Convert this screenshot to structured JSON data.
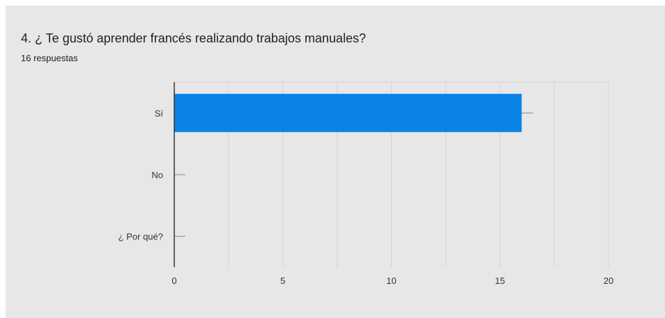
{
  "question": {
    "title": "4. ¿ Te gustó aprender francés realizando trabajos manuales?",
    "responses": "16 respuestas"
  },
  "colors": {
    "background": "#e7e7e7",
    "bar": "#0b84e8",
    "grid": "#d4d4d4",
    "axis": "#333333"
  },
  "chart_data": {
    "type": "bar",
    "orientation": "horizontal",
    "categories": [
      "Sí",
      "No",
      "¿ Por qué?"
    ],
    "values": [
      16,
      0,
      0
    ],
    "xlim": [
      0,
      20
    ],
    "xticks": [
      0,
      5,
      10,
      15,
      20
    ],
    "grid": true
  }
}
